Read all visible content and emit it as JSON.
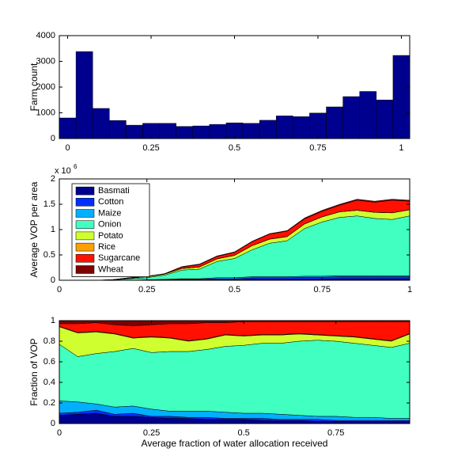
{
  "chart_data": [
    {
      "type": "histogram",
      "ylabel": "Farm count",
      "bins": [
        -0.025,
        0.025,
        0.075,
        0.125,
        0.175,
        0.225,
        0.275,
        0.325,
        0.375,
        0.425,
        0.475,
        0.525,
        0.575,
        0.625,
        0.675,
        0.725,
        0.775,
        0.825,
        0.875,
        0.925,
        0.975,
        1.025
      ],
      "values": [
        800,
        3380,
        1170,
        700,
        520,
        590,
        590,
        470,
        490,
        550,
        610,
        590,
        710,
        880,
        850,
        990,
        1230,
        1630,
        1830,
        1500,
        3230
      ],
      "color": "#00008f",
      "xlim": [
        -0.025,
        1.025
      ],
      "xticks": [
        0,
        0.25,
        0.5,
        0.75,
        1
      ],
      "ylim": [
        0,
        4000
      ],
      "yticks": [
        0,
        1000,
        2000,
        3000,
        4000
      ]
    },
    {
      "type": "stacked_area",
      "ylabel": "Average VOP per area",
      "y_offset_text": "x 10",
      "y_offset_exponent": "6",
      "x": [
        0,
        0.05,
        0.1,
        0.15,
        0.2,
        0.25,
        0.3,
        0.35,
        0.4,
        0.45,
        0.5,
        0.55,
        0.6,
        0.65,
        0.7,
        0.75,
        0.8,
        0.85,
        0.9,
        0.95,
        1
      ],
      "series": [
        {
          "name": "Basmati",
          "color": "#00008f",
          "values": [
            0,
            0,
            0,
            0,
            0,
            0,
            0,
            0.01,
            0.01,
            0.01,
            0.01,
            0.02,
            0.02,
            0.02,
            0.02,
            0.02,
            0.03,
            0.03,
            0.03,
            0.03,
            0.03
          ]
        },
        {
          "name": "Cotton",
          "color": "#0030ff",
          "values": [
            0,
            0,
            0,
            0,
            0,
            0,
            0.01,
            0.01,
            0.01,
            0.02,
            0.02,
            0.03,
            0.03,
            0.03,
            0.04,
            0.04,
            0.04,
            0.04,
            0.04,
            0.04,
            0.04
          ]
        },
        {
          "name": "Maize",
          "color": "#00b0ff",
          "values": [
            0,
            0,
            0,
            0,
            0,
            0.01,
            0.01,
            0.01,
            0.01,
            0.02,
            0.02,
            0.02,
            0.02,
            0.02,
            0.02,
            0.02,
            0.02,
            0.02,
            0.02,
            0.02,
            0.02
          ]
        },
        {
          "name": "Onion",
          "color": "#40ffc0",
          "values": [
            0,
            0,
            0,
            0.005,
            0.03,
            0.04,
            0.08,
            0.17,
            0.19,
            0.32,
            0.38,
            0.53,
            0.66,
            0.71,
            0.94,
            1.07,
            1.15,
            1.18,
            1.13,
            1.11,
            1.18
          ]
        },
        {
          "name": "Potato",
          "color": "#d0ff30",
          "values": [
            0,
            0,
            0,
            0.002,
            0.01,
            0.02,
            0.02,
            0.03,
            0.04,
            0.05,
            0.06,
            0.08,
            0.08,
            0.08,
            0.09,
            0.1,
            0.11,
            0.11,
            0.12,
            0.13,
            0.12
          ]
        },
        {
          "name": "Rice",
          "color": "#ff9f00",
          "values": [
            0,
            0,
            0,
            0,
            0,
            0.002,
            0.002,
            0.002,
            0.002,
            0.002,
            0.002,
            0.002,
            0.002,
            0.002,
            0.002,
            0.002,
            0.002,
            0.002,
            0.002,
            0.002,
            0.002
          ]
        },
        {
          "name": "Sugarcane",
          "color": "#ff1000",
          "values": [
            0,
            0,
            0,
            0.003,
            0.01,
            0.003,
            0.003,
            0.028,
            0.048,
            0.048,
            0.058,
            0.078,
            0.098,
            0.108,
            0.098,
            0.108,
            0.128,
            0.198,
            0.198,
            0.248,
            0.168
          ]
        },
        {
          "name": "Wheat",
          "color": "#800000",
          "values": [
            0,
            0,
            0,
            0,
            0,
            0.005,
            0.005,
            0.01,
            0.01,
            0.01,
            0.01,
            0.01,
            0.01,
            0.01,
            0.02,
            0.02,
            0.02,
            0.02,
            0.02,
            0.02,
            0.02
          ]
        }
      ],
      "legend": "upper left",
      "xlim": [
        0,
        1
      ],
      "xticks": [
        0,
        0.25,
        0.5,
        0.75,
        1
      ],
      "ylim": [
        0,
        2
      ],
      "yticks": [
        0,
        0.5,
        1,
        1.5,
        2
      ]
    },
    {
      "type": "stacked_area",
      "ylabel": "Fraction of VOP",
      "xlabel": "Average fraction of water allocation received",
      "x": [
        0,
        0.05,
        0.1,
        0.15,
        0.2,
        0.25,
        0.3,
        0.35,
        0.4,
        0.45,
        0.5,
        0.55,
        0.6,
        0.65,
        0.7,
        0.75,
        0.8,
        0.85,
        0.9,
        0.95
      ],
      "series": [
        {
          "color": "#00008f",
          "values": [
            0.08,
            0.09,
            0.1,
            0.07,
            0.07,
            0.06,
            0.05,
            0.05,
            0.04,
            0.04,
            0.04,
            0.03,
            0.03,
            0.03,
            0.02,
            0.02,
            0.02,
            0.02,
            0.02,
            0.02
          ]
        },
        {
          "color": "#0030ff",
          "values": [
            0.02,
            0.02,
            0.03,
            0.02,
            0.03,
            0.01,
            0.02,
            0.01,
            0.02,
            0.01,
            0.01,
            0.02,
            0.01,
            0.01,
            0.02,
            0.01,
            0.01,
            0.01,
            0.01,
            0.01
          ]
        },
        {
          "color": "#00b0ff",
          "values": [
            0.12,
            0.1,
            0.06,
            0.07,
            0.07,
            0.07,
            0.05,
            0.06,
            0.06,
            0.06,
            0.05,
            0.05,
            0.05,
            0.04,
            0.03,
            0.04,
            0.03,
            0.03,
            0.02,
            0.02
          ]
        },
        {
          "color": "#40ffc0",
          "values": [
            0.55,
            0.44,
            0.49,
            0.54,
            0.56,
            0.55,
            0.58,
            0.58,
            0.6,
            0.64,
            0.66,
            0.68,
            0.69,
            0.72,
            0.74,
            0.73,
            0.72,
            0.7,
            0.69,
            0.73
          ]
        },
        {
          "color": "#d0ff30",
          "values": [
            0.17,
            0.23,
            0.21,
            0.17,
            0.1,
            0.15,
            0.13,
            0.1,
            0.1,
            0.11,
            0.09,
            0.08,
            0.08,
            0.07,
            0.05,
            0.05,
            0.06,
            0.06,
            0.06,
            0.09
          ]
        },
        {
          "color": "#ff9f00",
          "values": [
            0.005,
            0.005,
            0.005,
            0.005,
            0.005,
            0.005,
            0.005,
            0.005,
            0.005,
            0.005,
            0.005,
            0.005,
            0.005,
            0.005,
            0.005,
            0.005,
            0.005,
            0.005,
            0.005,
            0.005
          ]
        },
        {
          "color": "#ff1000",
          "values": [
            0.025,
            0.085,
            0.085,
            0.085,
            0.115,
            0.115,
            0.135,
            0.165,
            0.155,
            0.115,
            0.135,
            0.125,
            0.125,
            0.115,
            0.125,
            0.135,
            0.145,
            0.165,
            0.185,
            0.115
          ]
        },
        {
          "color": "#800000",
          "values": [
            0.03,
            0.03,
            0.02,
            0.04,
            0.05,
            0.04,
            0.03,
            0.03,
            0.02,
            0.02,
            0.01,
            0.01,
            0.01,
            0.01,
            0.01,
            0.01,
            0.01,
            0.01,
            0.01,
            0.01
          ]
        }
      ],
      "xlim": [
        0,
        0.95
      ],
      "xticks": [
        0,
        0.25,
        0.5,
        0.75
      ],
      "ylim": [
        0,
        1
      ],
      "yticks": [
        0,
        0.2,
        0.4,
        0.6,
        0.8,
        1
      ]
    }
  ]
}
